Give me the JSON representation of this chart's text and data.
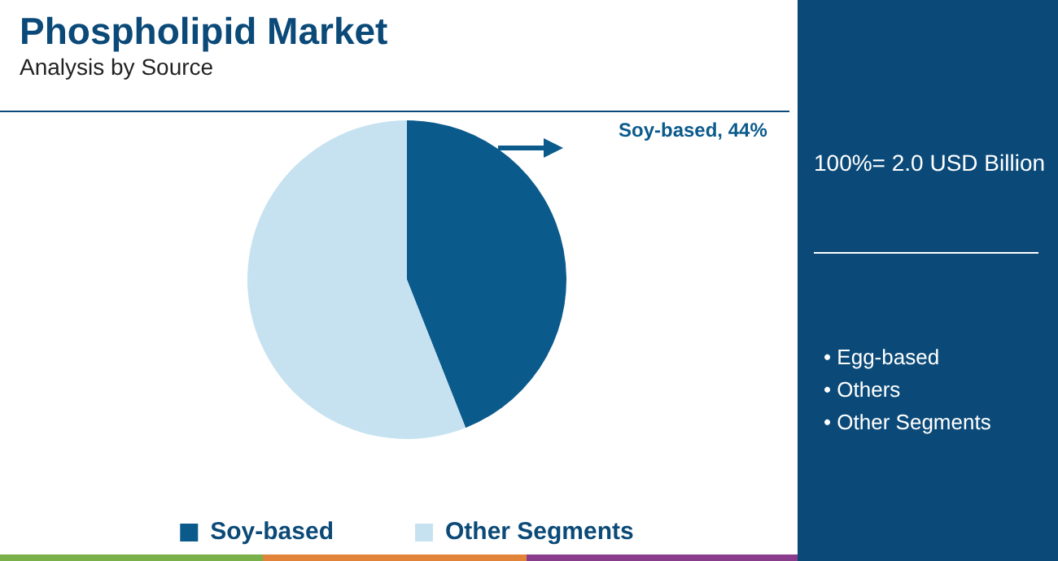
{
  "chart_data": {
    "type": "pie",
    "title": "Phospholipid Market",
    "subtitle": "Analysis by Source",
    "categories": [
      "Soy-based",
      "Other Segments"
    ],
    "values": [
      44,
      56
    ],
    "colors": [
      "#0b5a8c",
      "#c6e2f0"
    ],
    "legend": "bottom",
    "annotations": [
      "Soy-based, 44%",
      "100%= 2.0 USD Billion",
      "• Egg-based",
      "• Others",
      "• Other Segments"
    ]
  }
}
